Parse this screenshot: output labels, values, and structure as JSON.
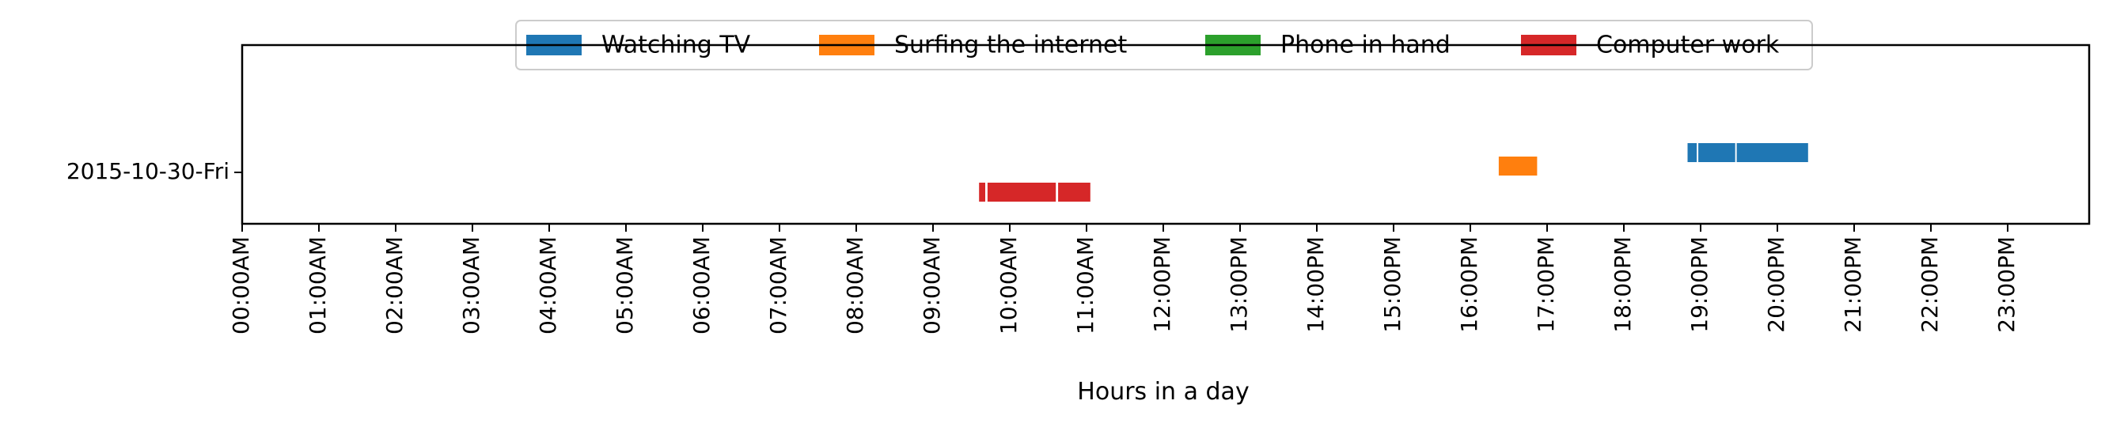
{
  "chart_data": {
    "type": "timeline",
    "title": "",
    "xlabel": "Hours in a day",
    "ylabel": "",
    "xlim": [
      0,
      24
    ],
    "x_ticks": [
      {
        "value": 0,
        "label": "00:00AM"
      },
      {
        "value": 1,
        "label": "01:00AM"
      },
      {
        "value": 2,
        "label": "02:00AM"
      },
      {
        "value": 3,
        "label": "03:00AM"
      },
      {
        "value": 4,
        "label": "04:00AM"
      },
      {
        "value": 5,
        "label": "05:00AM"
      },
      {
        "value": 6,
        "label": "06:00AM"
      },
      {
        "value": 7,
        "label": "07:00AM"
      },
      {
        "value": 8,
        "label": "08:00AM"
      },
      {
        "value": 9,
        "label": "09:00AM"
      },
      {
        "value": 10,
        "label": "10:00AM"
      },
      {
        "value": 11,
        "label": "11:00AM"
      },
      {
        "value": 12,
        "label": "12:00PM"
      },
      {
        "value": 13,
        "label": "13:00PM"
      },
      {
        "value": 14,
        "label": "14:00PM"
      },
      {
        "value": 15,
        "label": "15:00PM"
      },
      {
        "value": 16,
        "label": "16:00PM"
      },
      {
        "value": 17,
        "label": "17:00PM"
      },
      {
        "value": 18,
        "label": "18:00PM"
      },
      {
        "value": 19,
        "label": "19:00PM"
      },
      {
        "value": 20,
        "label": "20:00PM"
      },
      {
        "value": 21,
        "label": "21:00PM"
      },
      {
        "value": 22,
        "label": "22:00PM"
      },
      {
        "value": 23,
        "label": "23:00PM"
      }
    ],
    "rows": [
      "2015-10-30-Fri"
    ],
    "grid": false,
    "legend_position": "top-center",
    "series": [
      {
        "name": "Watching TV",
        "color": "#1f77b4",
        "row": "2015-10-30-Fri",
        "lane_offset": -0.25,
        "intervals": [
          [
            18.83,
            18.95
          ],
          [
            18.97,
            19.45
          ],
          [
            19.47,
            20.4
          ]
        ]
      },
      {
        "name": "Surfing the internet",
        "color": "#ff7f0e",
        "row": "2015-10-30-Fri",
        "lane_offset": -0.08,
        "intervals": [
          [
            16.37,
            16.87
          ]
        ]
      },
      {
        "name": "Phone in hand",
        "color": "#2ca02c",
        "row": "2015-10-30-Fri",
        "lane_offset": 0.08,
        "intervals": []
      },
      {
        "name": "Computer work",
        "color": "#d62728",
        "row": "2015-10-30-Fri",
        "lane_offset": 0.25,
        "intervals": [
          [
            9.6,
            9.68
          ],
          [
            9.71,
            10.6
          ],
          [
            10.63,
            11.05
          ]
        ]
      }
    ]
  }
}
